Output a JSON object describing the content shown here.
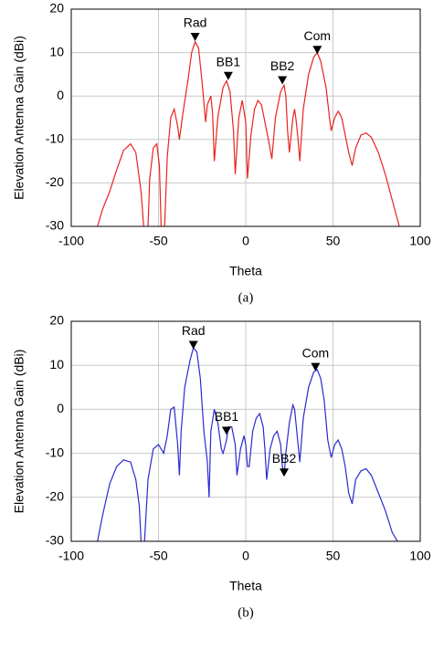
{
  "chart_data": [
    {
      "type": "line",
      "caption": "(a)",
      "x_label": "Theta",
      "y_label": "Elevation Antenna Gain (dBi)",
      "xlim": [
        -100,
        100
      ],
      "xticks": [
        -100,
        -50,
        0,
        50,
        100
      ],
      "ylim": [
        -30,
        20
      ],
      "yticks": [
        -30,
        -20,
        -10,
        0,
        10,
        20
      ],
      "grid": true,
      "color": "#e8231f",
      "x": [
        -85,
        -82,
        -78,
        -74,
        -70,
        -66,
        -63,
        -60,
        -58.5,
        -57.2,
        -56,
        -55,
        -53,
        -51,
        -49.5,
        -48.5,
        -47.5,
        -46.5,
        -45,
        -43,
        -41,
        -39,
        -38,
        -36,
        -33,
        -31,
        -29,
        -27,
        -25,
        -23,
        -22,
        -20,
        -19,
        -18,
        -16,
        -13,
        -11,
        -9,
        -7,
        -6,
        -4,
        -2,
        0,
        1,
        3,
        5,
        7,
        9,
        11,
        13,
        15,
        17,
        20,
        22,
        23,
        24,
        25,
        27,
        28,
        29,
        30,
        31,
        33,
        36,
        39,
        41,
        43,
        46,
        48,
        49,
        51,
        53,
        55,
        57,
        59,
        61,
        63,
        66,
        69,
        72,
        76,
        80,
        84,
        88
      ],
      "values": [
        -30,
        -26,
        -22,
        -17,
        -12.5,
        -11,
        -13,
        -22,
        -30,
        null,
        -30,
        -19,
        -12,
        -11,
        -16,
        -30,
        null,
        -30,
        -14,
        -5,
        -3,
        -7,
        -10,
        -4,
        4,
        10,
        12.5,
        11,
        3,
        -6,
        -2,
        0,
        -4,
        -15,
        -5,
        2,
        3.5,
        1,
        -8,
        -18,
        -5,
        -1,
        -6,
        -19,
        -9,
        -3,
        -1,
        -2,
        -6,
        -10,
        -14.5,
        -5,
        1,
        2.5,
        0,
        -8,
        -13,
        -5,
        -3,
        -6,
        -10,
        -15,
        -3,
        5,
        9,
        10,
        8,
        2,
        -5,
        -8,
        -5,
        -3.5,
        -5,
        -9,
        -13,
        -16,
        -12,
        -9,
        -8.5,
        -9.5,
        -13,
        -18,
        -24,
        -30
      ],
      "markers": [
        {
          "label": "Rad",
          "x": -29,
          "y": 13.5
        },
        {
          "label": "BB1",
          "x": -10,
          "y": 4.5
        },
        {
          "label": "BB2",
          "x": 21,
          "y": 3.5
        },
        {
          "label": "Com",
          "x": 41,
          "y": 10.5
        }
      ]
    },
    {
      "type": "line",
      "caption": "(b)",
      "x_label": "Theta",
      "y_label": "Elevation Antenna Gain (dBi)",
      "xlim": [
        -100,
        100
      ],
      "xticks": [
        -100,
        -50,
        0,
        50,
        100
      ],
      "ylim": [
        -30,
        20
      ],
      "yticks": [
        -30,
        -20,
        -10,
        0,
        10,
        20
      ],
      "grid": true,
      "color": "#2a2ad0",
      "x": [
        -85,
        -82,
        -78,
        -74,
        -70,
        -66,
        -63,
        -61,
        -60,
        -59,
        -58,
        -56,
        -53,
        -50,
        -47,
        -45,
        -43,
        -41,
        -39,
        -38,
        -37,
        -35,
        -32,
        -30,
        -28,
        -26,
        -24,
        -22,
        -21,
        -20,
        -18,
        -16,
        -14,
        -13,
        -11,
        -10,
        -8,
        -6,
        -5,
        -3,
        -1,
        0,
        1,
        2,
        4,
        6,
        8,
        10,
        11,
        12,
        14,
        16,
        18,
        20,
        21,
        22,
        23,
        25,
        27,
        28,
        30,
        31,
        33,
        36,
        39,
        41,
        43,
        45,
        47,
        49,
        51,
        53,
        55,
        57,
        59,
        61,
        63,
        66,
        69,
        72,
        76,
        80,
        84,
        87
      ],
      "values": [
        -30,
        -24,
        -17,
        -13,
        -11.5,
        -12,
        -16,
        -22,
        -30,
        null,
        -30,
        -16,
        -9,
        -8,
        -10,
        -6,
        0,
        0.5,
        -8,
        -15,
        -5,
        5,
        11,
        14,
        13,
        7,
        -5,
        -12,
        -20,
        -5,
        0,
        -3,
        -9,
        -10,
        -7,
        -4,
        -4,
        -8,
        -15,
        -9,
        -6,
        -8,
        -13,
        -13,
        -5,
        -2,
        -1,
        -4,
        -9,
        -16,
        -9,
        -6,
        -5,
        -8,
        -13,
        -15,
        -10,
        -3,
        1,
        0,
        -8,
        -12,
        -2,
        5,
        8.5,
        9,
        7,
        2,
        -7,
        -11,
        -8,
        -7,
        -9,
        -13,
        -19,
        -21.5,
        -16,
        -14,
        -13.5,
        -15,
        -19,
        -23,
        -28,
        -30
      ],
      "markers": [
        {
          "label": "Rad",
          "x": -30,
          "y": 14.5
        },
        {
          "label": "BB1",
          "x": -11,
          "y": -5
        },
        {
          "label": "BB2",
          "x": 22,
          "y": -14.5
        },
        {
          "label": "Com",
          "x": 40,
          "y": 9.5
        }
      ]
    }
  ]
}
